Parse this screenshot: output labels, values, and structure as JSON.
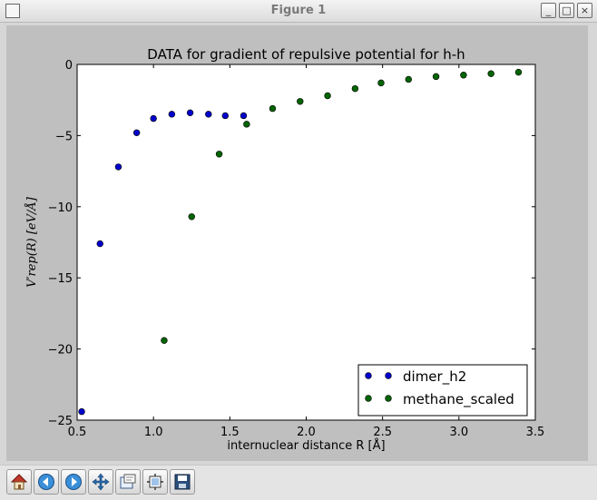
{
  "window": {
    "title": "Figure 1",
    "minimize_label": "_",
    "maximize_label": "□",
    "close_label": "×"
  },
  "toolbar": {
    "buttons": [
      {
        "name": "home",
        "icon": "home-icon"
      },
      {
        "name": "back",
        "icon": "arrow-left-icon"
      },
      {
        "name": "forward",
        "icon": "arrow-right-icon"
      },
      {
        "name": "pan",
        "icon": "move-icon"
      },
      {
        "name": "zoom",
        "icon": "zoom-rect-icon"
      },
      {
        "name": "subplots",
        "icon": "subplots-icon"
      },
      {
        "name": "save",
        "icon": "save-icon"
      }
    ]
  },
  "colors": {
    "series1": "#0000cc",
    "series2": "#006400",
    "figure_bg": "#bfbfbf",
    "axes_bg": "#ffffff"
  },
  "chart_data": {
    "type": "scatter",
    "title": "DATA for gradient of repulsive potential for h-h",
    "xlabel": "internuclear distance R [Å]",
    "ylabel": "V′rep(R) [eV/Å]",
    "xlim": [
      0.5,
      3.5
    ],
    "ylim": [
      -25,
      0
    ],
    "xticks": [
      0.5,
      1.0,
      1.5,
      2.0,
      2.5,
      3.0,
      3.5
    ],
    "yticks": [
      0,
      -5,
      -10,
      -15,
      -20,
      -25
    ],
    "xtick_labels": [
      "0.5",
      "1.0",
      "1.5",
      "2.0",
      "2.5",
      "3.0",
      "3.5"
    ],
    "ytick_labels": [
      "0",
      "−5",
      "−10",
      "−15",
      "−20",
      "−25"
    ],
    "grid": false,
    "legend_position": "lower-right",
    "series": [
      {
        "name": "dimer_h2",
        "color": "#0000cc",
        "x": [
          0.53,
          0.65,
          0.77,
          0.89,
          1.0,
          1.12,
          1.24,
          1.36,
          1.47,
          1.59
        ],
        "y": [
          -24.4,
          -12.6,
          -7.2,
          -4.8,
          -3.8,
          -3.5,
          -3.4,
          -3.5,
          -3.6,
          -3.6
        ]
      },
      {
        "name": "methane_scaled",
        "color": "#006400",
        "x": [
          1.07,
          1.25,
          1.43,
          1.61,
          1.78,
          1.96,
          2.14,
          2.32,
          2.49,
          2.67,
          2.85,
          3.03,
          3.21,
          3.39
        ],
        "y": [
          -19.4,
          -10.7,
          -6.3,
          -4.2,
          -3.1,
          -2.6,
          -2.2,
          -1.7,
          -1.3,
          -1.05,
          -0.85,
          -0.75,
          -0.65,
          -0.55
        ]
      }
    ]
  }
}
